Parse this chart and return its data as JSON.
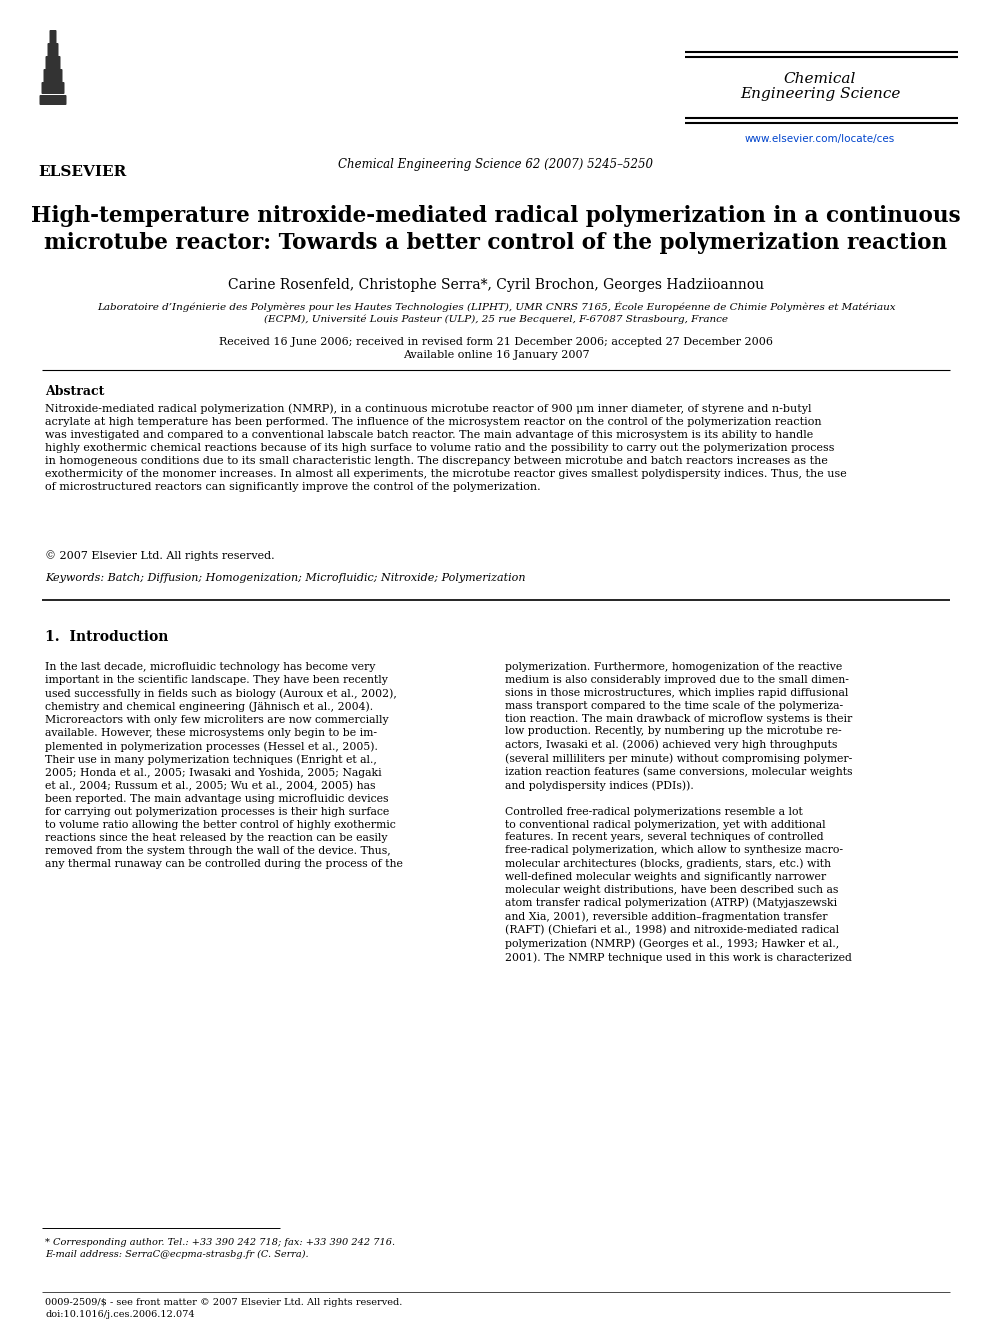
{
  "bg_color": "#ffffff",
  "header": {
    "journal_name_line1": "Chemical",
    "journal_name_line2": "Engineering Science",
    "journal_ref": "Chemical Engineering Science 62 (2007) 5245–5250",
    "journal_url": "www.elsevier.com/locate/ces",
    "elsevier_text": "ELSEVIER"
  },
  "title": "High-temperature nitroxide-mediated radical polymerization in a continuous\nmicrotube reactor: Towards a better control of the polymerization reaction",
  "authors": "Carine Rosenfeld, Christophe Serra*, Cyril Brochon, Georges Hadziioannou",
  "affiliation_line1": "Laboratoire d’Ingénierie des Polymères pour les Hautes Technologies (LIPHT), UMR CNRS 7165, École Européenne de Chimie Polymères et Matériaux",
  "affiliation_line2": "(ECPM), Université Louis Pasteur (ULP), 25 rue Becquerel, F-67087 Strasbourg, France",
  "received": "Received 16 June 2006; received in revised form 21 December 2006; accepted 27 December 2006",
  "available": "Available online 16 January 2007",
  "abstract_title": "Abstract",
  "abstract_text": "Nitroxide-mediated radical polymerization (NMRP), in a continuous microtube reactor of 900 μm inner diameter, of styrene and n-butyl\nacrylate at high temperature has been performed. The influence of the microsystem reactor on the control of the polymerization reaction\nwas investigated and compared to a conventional labscale batch reactor. The main advantage of this microsystem is its ability to handle\nhighly exothermic chemical reactions because of its high surface to volume ratio and the possibility to carry out the polymerization process\nin homogeneous conditions due to its small characteristic length. The discrepancy between microtube and batch reactors increases as the\nexothermicity of the monomer increases. In almost all experiments, the microtube reactor gives smallest polydispersity indices. Thus, the use\nof microstructured reactors can significantly improve the control of the polymerization.",
  "copyright": "© 2007 Elsevier Ltd. All rights reserved.",
  "keywords": "Keywords: Batch; Diffusion; Homogenization; Microfluidic; Nitroxide; Polymerization",
  "section1_title": "1.  Introduction",
  "col1_text": "In the last decade, microfluidic technology has become very\nimportant in the scientific landscape. They have been recently\nused successfully in fields such as biology (Auroux et al., 2002),\nchemistry and chemical engineering (Jähnisch et al., 2004).\nMicroreactors with only few microliters are now commercially\navailable. However, these microsystems only begin to be im-\nplemented in polymerization processes (Hessel et al., 2005).\nTheir use in many polymerization techniques (Enright et al.,\n2005; Honda et al., 2005; Iwasaki and Yoshida, 2005; Nagaki\net al., 2004; Russum et al., 2005; Wu et al., 2004, 2005) has\nbeen reported. The main advantage using microfluidic devices\nfor carrying out polymerization processes is their high surface\nto volume ratio allowing the better control of highly exothermic\nreactions since the heat released by the reaction can be easily\nremoved from the system through the wall of the device. Thus,\nany thermal runaway can be controlled during the process of the",
  "col2_text": "polymerization. Furthermore, homogenization of the reactive\nmedium is also considerably improved due to the small dimen-\nsions in those microstructures, which implies rapid diffusional\nmass transport compared to the time scale of the polymeriza-\ntion reaction. The main drawback of microflow systems is their\nlow production. Recently, by numbering up the microtube re-\nactors, Iwasaki et al. (2006) achieved very high throughputs\n(several milliliters per minute) without compromising polymer-\nization reaction features (same conversions, molecular weights\nand polydispersity indices (PDIs)).\n\nControlled free-radical polymerizations resemble a lot\nto conventional radical polymerization, yet with additional\nfeatures. In recent years, several techniques of controlled\nfree-radical polymerization, which allow to synthesize macro-\nmolecular architectures (blocks, gradients, stars, etc.) with\nwell-defined molecular weights and significantly narrower\nmolecular weight distributions, have been described such as\natom transfer radical polymerization (ATRP) (Matyjaszewski\nand Xia, 2001), reversible addition–fragmentation transfer\n(RAFT) (Chiefari et al., 1998) and nitroxide-mediated radical\npolymerization (NMRP) (Georges et al., 1993; Hawker et al.,\n2001). The NMRP technique used in this work is characterized",
  "footnote_star": "* Corresponding author. Tel.: +33 390 242 718; fax: +33 390 242 716.",
  "footnote_email": "E-mail address: SerraC@ecpma-strasbg.fr (C. Serra).",
  "footer_issn": "0009-2509/$ - see front matter © 2007 Elsevier Ltd. All rights reserved.",
  "footer_doi": "doi:10.1016/j.ces.2006.12.074"
}
